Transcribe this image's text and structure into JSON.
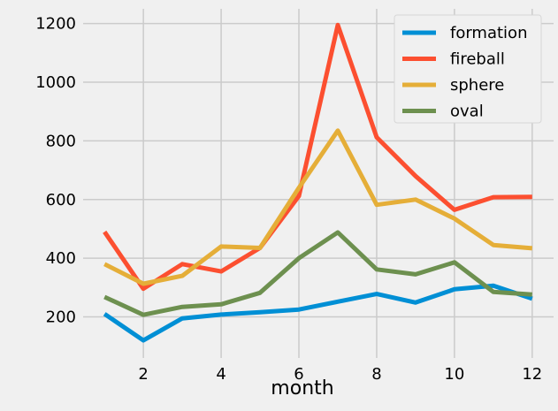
{
  "chart_data": {
    "type": "line",
    "title": "",
    "xlabel": "month",
    "ylabel": "",
    "x": [
      1,
      2,
      3,
      4,
      5,
      6,
      7,
      8,
      9,
      10,
      11,
      12
    ],
    "xlim": [
      0.45,
      12.55
    ],
    "ylim": [
      60,
      1250
    ],
    "x_ticks": [
      2,
      4,
      6,
      8,
      10,
      12
    ],
    "y_ticks": [
      200,
      400,
      600,
      800,
      1000,
      1200
    ],
    "grid": true,
    "legend_position": "top-right",
    "series": [
      {
        "name": "formation",
        "color": "#008fd5",
        "values": [
          210,
          120,
          195,
          208,
          216,
          225,
          252,
          278,
          249,
          294,
          306,
          262
        ]
      },
      {
        "name": "fireball",
        "color": "#fc4f30",
        "values": [
          490,
          296,
          380,
          355,
          435,
          612,
          1195,
          812,
          680,
          565,
          608,
          609
        ]
      },
      {
        "name": "sphere",
        "color": "#e5ae38",
        "values": [
          380,
          313,
          340,
          440,
          435,
          640,
          835,
          582,
          600,
          535,
          445,
          434
        ]
      },
      {
        "name": "oval",
        "color": "#6d904f",
        "values": [
          268,
          207,
          234,
          243,
          282,
          400,
          488,
          362,
          345,
          386,
          285,
          276
        ]
      }
    ]
  }
}
